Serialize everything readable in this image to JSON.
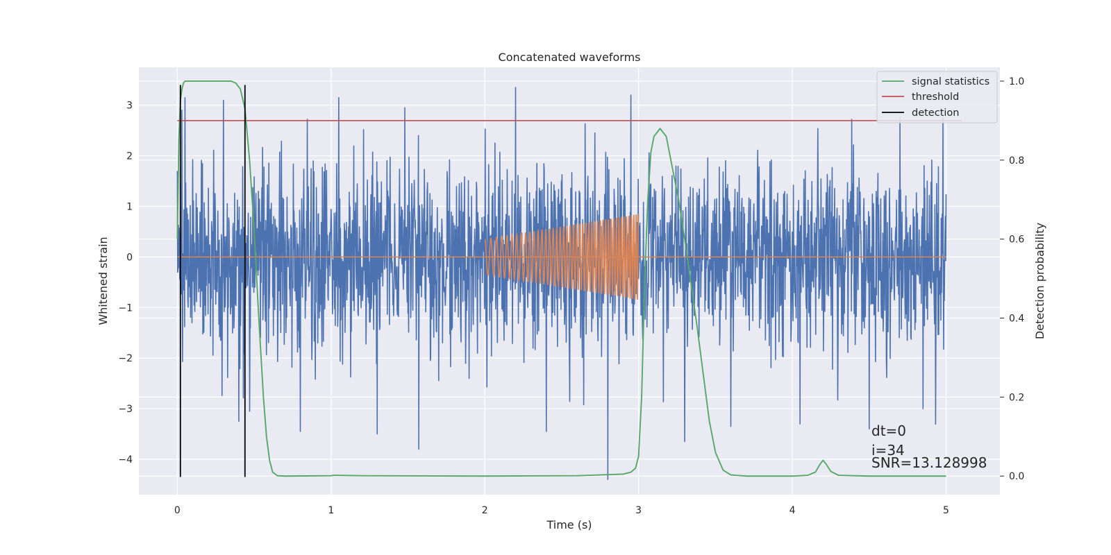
{
  "chart_data": {
    "type": "line",
    "title": "Concatenated waveforms",
    "xlabel": "Time (s)",
    "ylabel": "Whitened strain",
    "y2label": "Detection probability",
    "xlim": [
      -0.25,
      5.35
    ],
    "ylim": [
      -4.7,
      3.75
    ],
    "y2lim": [
      -0.047,
      1.035
    ],
    "xticks": [
      0,
      1,
      2,
      3,
      4,
      5
    ],
    "xtick_labels": [
      "0",
      "1",
      "2",
      "3",
      "4",
      "5"
    ],
    "yticks": [
      -4,
      -3,
      -2,
      -1,
      0,
      1,
      2,
      3
    ],
    "ytick_labels": [
      "−4",
      "−3",
      "−2",
      "−1",
      "0",
      "1",
      "2",
      "3"
    ],
    "y2ticks": [
      0.0,
      0.2,
      0.4,
      0.6,
      0.8,
      1.0
    ],
    "y2tick_labels": [
      "0.0",
      "0.2",
      "0.4",
      "0.6",
      "0.8",
      "1.0"
    ],
    "grid": true,
    "legend_position": "top-right",
    "colors": {
      "background": "#eaeaf2",
      "grid": "#ffffff",
      "strain": "#4c72b0",
      "injected": "#dd8452",
      "signal_statistics": "#55a868",
      "threshold": "#c44e52",
      "detection": "#000000"
    },
    "series": [
      {
        "name": "",
        "axis": "left",
        "kind": "noise",
        "x_range": [
          0,
          5
        ],
        "typical_amplitude": 1.8,
        "peak_range": [
          -4.4,
          3.4
        ],
        "extremes": [
          {
            "x": 0.03,
            "y": 2.9
          },
          {
            "x": 0.05,
            "y": 3.15
          },
          {
            "x": 0.3,
            "y": 3.1
          },
          {
            "x": 0.4,
            "y": -3.25
          },
          {
            "x": 0.47,
            "y": -3.05
          },
          {
            "x": 0.8,
            "y": -3.45
          },
          {
            "x": 1.05,
            "y": 3.15
          },
          {
            "x": 1.3,
            "y": -3.5
          },
          {
            "x": 1.48,
            "y": 2.95
          },
          {
            "x": 1.57,
            "y": -3.8
          },
          {
            "x": 2.2,
            "y": 3.35
          },
          {
            "x": 2.4,
            "y": -3.45
          },
          {
            "x": 2.8,
            "y": -4.4
          },
          {
            "x": 2.95,
            "y": 3.2
          },
          {
            "x": 3.3,
            "y": -3.65
          },
          {
            "x": 3.6,
            "y": -3.35
          },
          {
            "x": 4.05,
            "y": -3.3
          },
          {
            "x": 4.5,
            "y": -3.4
          },
          {
            "x": 4.7,
            "y": 2.75
          },
          {
            "x": 4.85,
            "y": -3.0
          },
          {
            "x": 4.98,
            "y": 2.75
          }
        ]
      },
      {
        "name": "",
        "axis": "left",
        "kind": "chirp",
        "x_range": [
          2,
          3
        ],
        "amplitude_start": 0.35,
        "amplitude_end": 0.85,
        "cycles": 45,
        "baseline_x_range": [
          0,
          5
        ],
        "baseline_y": 0
      },
      {
        "name": "signal statistics",
        "axis": "right",
        "x": [
          0.0,
          0.01,
          0.02,
          0.03,
          0.04,
          0.05,
          0.06,
          0.1,
          0.2,
          0.3,
          0.35,
          0.38,
          0.41,
          0.44,
          0.47,
          0.5,
          0.53,
          0.56,
          0.58,
          0.6,
          0.62,
          0.65,
          0.7,
          1.0,
          1.02,
          1.2,
          2.0,
          2.6,
          2.9,
          2.95,
          2.98,
          3.0,
          3.02,
          3.04,
          3.06,
          3.08,
          3.1,
          3.14,
          3.18,
          3.22,
          3.26,
          3.3,
          3.34,
          3.38,
          3.42,
          3.46,
          3.5,
          3.55,
          3.6,
          3.7,
          4.0,
          4.1,
          4.15,
          4.18,
          4.2,
          4.22,
          4.25,
          4.3,
          4.5,
          5.0
        ],
        "y": [
          0.6,
          0.85,
          0.95,
          0.98,
          0.995,
          1.0,
          1.0,
          1.0,
          1.0,
          1.0,
          1.0,
          0.995,
          0.98,
          0.93,
          0.8,
          0.62,
          0.4,
          0.2,
          0.1,
          0.04,
          0.01,
          0.001,
          0.0,
          0.001,
          0.002,
          0.001,
          0.0,
          0.001,
          0.005,
          0.01,
          0.02,
          0.05,
          0.2,
          0.5,
          0.7,
          0.82,
          0.86,
          0.88,
          0.86,
          0.78,
          0.7,
          0.6,
          0.49,
          0.38,
          0.26,
          0.14,
          0.06,
          0.015,
          0.003,
          0.0,
          0.0,
          0.002,
          0.01,
          0.03,
          0.04,
          0.03,
          0.012,
          0.002,
          0.0,
          0.0
        ]
      },
      {
        "name": "threshold",
        "axis": "right",
        "x": [
          0,
          5.1
        ],
        "y": [
          0.9,
          0.9
        ]
      },
      {
        "name": "detection",
        "axis": "left",
        "kind": "vlines",
        "x": [
          0.02,
          0.44
        ],
        "y_range": [
          -4.35,
          3.4
        ]
      }
    ],
    "annotations": [
      "dt=0",
      "i=34",
      "SNR=13.128998"
    ]
  }
}
